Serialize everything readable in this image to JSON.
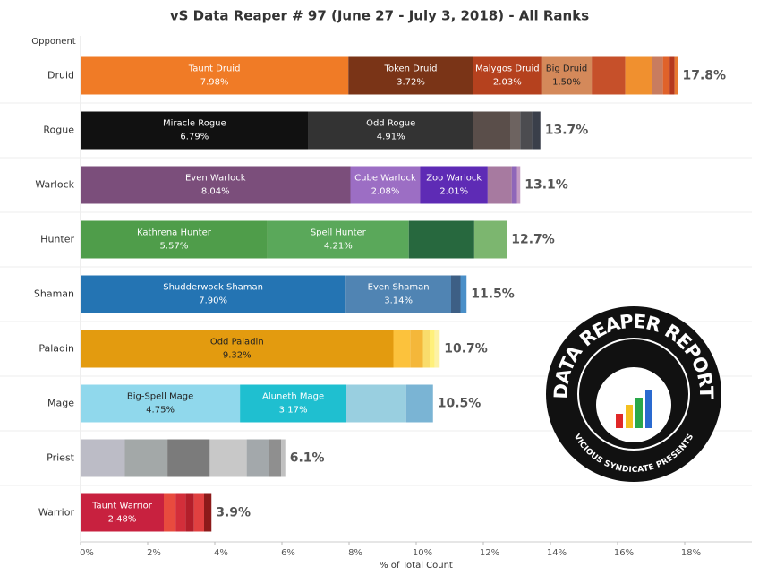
{
  "chart_data": {
    "type": "stacked_bar",
    "title": "vS Data Reaper # 97 (June 27 - July 3, 2018) - All Ranks",
    "ylabel": "Opponent",
    "xlabel": "% of Total Count",
    "xlim": [
      0,
      20
    ],
    "xticks": [
      {
        "value": 0,
        "label": "0%"
      },
      {
        "value": 2,
        "label": "2%"
      },
      {
        "value": 4,
        "label": "4%"
      },
      {
        "value": 6,
        "label": "6%"
      },
      {
        "value": 8,
        "label": "8%"
      },
      {
        "value": 10,
        "label": "10%"
      },
      {
        "value": 12,
        "label": "12%"
      },
      {
        "value": 14,
        "label": "14%"
      },
      {
        "value": 16,
        "label": "16%"
      },
      {
        "value": 18,
        "label": "18%"
      }
    ],
    "categories": [
      "Druid",
      "Rogue",
      "Warlock",
      "Hunter",
      "Shaman",
      "Paladin",
      "Mage",
      "Priest",
      "Warrior"
    ],
    "totals": [
      17.8,
      13.7,
      13.1,
      12.7,
      11.5,
      10.7,
      10.5,
      6.1,
      3.9
    ],
    "total_labels": [
      "17.8%",
      "13.7%",
      "13.1%",
      "12.7%",
      "11.5%",
      "10.7%",
      "10.5%",
      "6.1%",
      "3.9%"
    ],
    "segments": [
      [
        {
          "name": "Taunt Druid",
          "value": 7.98,
          "value_label": "7.98%",
          "color": "#f07b26"
        },
        {
          "name": "Token Druid",
          "value": 3.72,
          "value_label": "3.72%",
          "color": "#7a3417"
        },
        {
          "name": "Malygos Druid",
          "value": 2.03,
          "value_label": "2.03%",
          "color": "#b5411e"
        },
        {
          "name": "Big Druid",
          "value": 1.5,
          "value_label": "1.50%",
          "color": "#d4895a"
        },
        {
          "value": 1.0,
          "color": "#c6502a"
        },
        {
          "value": 0.8,
          "color": "#f0902f"
        },
        {
          "value": 0.32,
          "color": "#c87c5f"
        },
        {
          "value": 0.2,
          "color": "#e0622a"
        },
        {
          "value": 0.15,
          "color": "#b5391e"
        },
        {
          "value": 0.1,
          "color": "#e87930"
        }
      ],
      [
        {
          "name": "Miracle Rogue",
          "value": 6.79,
          "value_label": "6.79%",
          "color": "#111111"
        },
        {
          "name": "Odd Rogue",
          "value": 4.91,
          "value_label": "4.91%",
          "color": "#333333"
        },
        {
          "value": 1.1,
          "color": "#5a4e4a"
        },
        {
          "value": 0.3,
          "color": "#6d6360"
        },
        {
          "value": 0.35,
          "color": "#4c4c50"
        },
        {
          "value": 0.25,
          "color": "#3a3f4a"
        }
      ],
      [
        {
          "name": "Even Warlock",
          "value": 8.04,
          "value_label": "8.04%",
          "color": "#7b4e7b"
        },
        {
          "name": "Cube Warlock",
          "value": 2.08,
          "value_label": "2.08%",
          "color": "#9c6ec4"
        },
        {
          "name": "Zoo Warlock",
          "value": 2.01,
          "value_label": "2.01%",
          "color": "#5e2bb5"
        },
        {
          "value": 0.72,
          "color": "#a77aa0"
        },
        {
          "value": 0.15,
          "color": "#8f66b9"
        },
        {
          "value": 0.1,
          "color": "#c59bc4"
        }
      ],
      [
        {
          "name": "Kathrena Hunter",
          "value": 5.57,
          "value_label": "5.57%",
          "color": "#4f9d4a"
        },
        {
          "name": "Spell Hunter",
          "value": 4.21,
          "value_label": "4.21%",
          "color": "#5aa85a"
        },
        {
          "value": 1.95,
          "color": "#27683e"
        },
        {
          "value": 0.97,
          "color": "#7cb66f"
        }
      ],
      [
        {
          "name": "Shudderwock Shaman",
          "value": 7.9,
          "value_label": "7.90%",
          "color": "#2474b3"
        },
        {
          "name": "Even Shaman",
          "value": 3.14,
          "value_label": "3.14%",
          "color": "#5084b3"
        },
        {
          "value": 0.28,
          "color": "#3d5f85"
        },
        {
          "value": 0.18,
          "color": "#4a8fc8"
        }
      ],
      [
        {
          "name": "Odd Paladin",
          "value": 9.32,
          "value_label": "9.32%",
          "color": "#e39b0f"
        },
        {
          "value": 0.5,
          "color": "#fcc23c"
        },
        {
          "value": 0.38,
          "color": "#f4b73a"
        },
        {
          "value": 0.2,
          "color": "#f9dc6c"
        },
        {
          "value": 0.15,
          "color": "#fff07a"
        },
        {
          "value": 0.15,
          "color": "#fdf2a5"
        }
      ],
      [
        {
          "name": "Big-Spell Mage",
          "value": 4.75,
          "value_label": "4.75%",
          "color": "#90d8ec"
        },
        {
          "name": "Aluneth Mage",
          "value": 3.17,
          "value_label": "3.17%",
          "color": "#1fbfd0"
        },
        {
          "value": 1.78,
          "color": "#99cfe0"
        },
        {
          "value": 0.8,
          "color": "#7ab4d4"
        }
      ],
      [
        {
          "value": 1.32,
          "color": "#bcbcc6"
        },
        {
          "value": 1.27,
          "color": "#a3a8a8"
        },
        {
          "value": 1.26,
          "color": "#7b7b7b"
        },
        {
          "value": 1.1,
          "color": "#c8c8c8"
        },
        {
          "value": 0.65,
          "color": "#a3a8ab"
        },
        {
          "value": 0.38,
          "color": "#8f8f8f"
        },
        {
          "value": 0.12,
          "color": "#c0c0c0"
        }
      ],
      [
        {
          "name": "Taunt Warrior",
          "value": 2.48,
          "value_label": "2.48%",
          "color": "#c8213f"
        },
        {
          "value": 0.35,
          "color": "#e84b3e"
        },
        {
          "value": 0.3,
          "color": "#d32e3a"
        },
        {
          "value": 0.25,
          "color": "#b31e2a"
        },
        {
          "value": 0.3,
          "color": "#e04040"
        },
        {
          "value": 0.22,
          "color": "#8c1a1a"
        }
      ]
    ]
  },
  "logo": {
    "title": "DATA REAPER REPORT",
    "subtitle": "VICIOUS SYNDICATE PRESENTS"
  }
}
